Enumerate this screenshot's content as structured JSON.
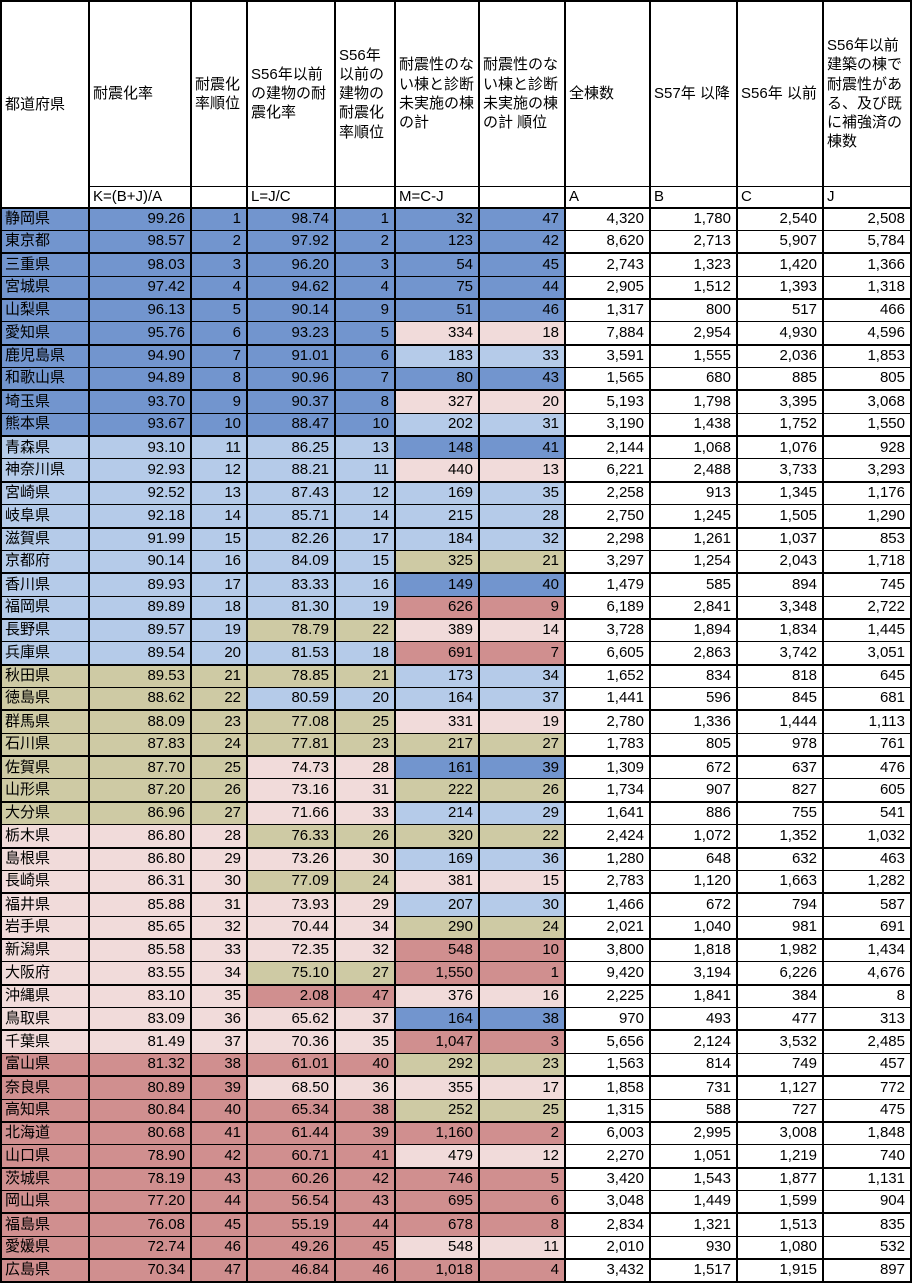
{
  "table": {
    "columns": [
      {
        "label": "都道府県",
        "formula": ""
      },
      {
        "label": "耐震化率",
        "formula": "K=(B+J)/A"
      },
      {
        "label": "耐震化率順位",
        "formula": ""
      },
      {
        "label": "S56年以前の建物の耐震化率",
        "formula": "L=J/C"
      },
      {
        "label": "S56年以前の建物の耐震化率順位",
        "formula": ""
      },
      {
        "label": "耐震性のない棟と診断 未実施の棟 の計",
        "formula": "M=C-J"
      },
      {
        "label": "耐震性のない棟と診断 未実施の棟 の計 順位",
        "formula": ""
      },
      {
        "label": "全棟数",
        "formula": "A"
      },
      {
        "label": "S57年 以降",
        "formula": "B"
      },
      {
        "label": "S56年 以前",
        "formula": "C"
      },
      {
        "label": "S56年以前 建築の棟で 耐震性がある、及び既 に補強済の棟数",
        "formula": "J"
      }
    ],
    "rows": [
      [
        "静岡県",
        "99.26",
        "1",
        "98.74",
        "1",
        "32",
        "47",
        "4,320",
        "1,780",
        "2,540",
        "2,508"
      ],
      [
        "東京都",
        "98.57",
        "2",
        "97.92",
        "2",
        "123",
        "42",
        "8,620",
        "2,713",
        "5,907",
        "5,784"
      ],
      [
        "三重県",
        "98.03",
        "3",
        "96.20",
        "3",
        "54",
        "45",
        "2,743",
        "1,323",
        "1,420",
        "1,366"
      ],
      [
        "宮城県",
        "97.42",
        "4",
        "94.62",
        "4",
        "75",
        "44",
        "2,905",
        "1,512",
        "1,393",
        "1,318"
      ],
      [
        "山梨県",
        "96.13",
        "5",
        "90.14",
        "9",
        "51",
        "46",
        "1,317",
        "800",
        "517",
        "466"
      ],
      [
        "愛知県",
        "95.76",
        "6",
        "93.23",
        "5",
        "334",
        "18",
        "7,884",
        "2,954",
        "4,930",
        "4,596"
      ],
      [
        "鹿児島県",
        "94.90",
        "7",
        "91.01",
        "6",
        "183",
        "33",
        "3,591",
        "1,555",
        "2,036",
        "1,853"
      ],
      [
        "和歌山県",
        "94.89",
        "8",
        "90.96",
        "7",
        "80",
        "43",
        "1,565",
        "680",
        "885",
        "805"
      ],
      [
        "埼玉県",
        "93.70",
        "9",
        "90.37",
        "8",
        "327",
        "20",
        "5,193",
        "1,798",
        "3,395",
        "3,068"
      ],
      [
        "熊本県",
        "93.67",
        "10",
        "88.47",
        "10",
        "202",
        "31",
        "3,190",
        "1,438",
        "1,752",
        "1,550"
      ],
      [
        "青森県",
        "93.10",
        "11",
        "86.25",
        "13",
        "148",
        "41",
        "2,144",
        "1,068",
        "1,076",
        "928"
      ],
      [
        "神奈川県",
        "92.93",
        "12",
        "88.21",
        "11",
        "440",
        "13",
        "6,221",
        "2,488",
        "3,733",
        "3,293"
      ],
      [
        "宮崎県",
        "92.52",
        "13",
        "87.43",
        "12",
        "169",
        "35",
        "2,258",
        "913",
        "1,345",
        "1,176"
      ],
      [
        "岐阜県",
        "92.18",
        "14",
        "85.71",
        "14",
        "215",
        "28",
        "2,750",
        "1,245",
        "1,505",
        "1,290"
      ],
      [
        "滋賀県",
        "91.99",
        "15",
        "82.26",
        "17",
        "184",
        "32",
        "2,298",
        "1,261",
        "1,037",
        "853"
      ],
      [
        "京都府",
        "90.14",
        "16",
        "84.09",
        "15",
        "325",
        "21",
        "3,297",
        "1,254",
        "2,043",
        "1,718"
      ],
      [
        "香川県",
        "89.93",
        "17",
        "83.33",
        "16",
        "149",
        "40",
        "1,479",
        "585",
        "894",
        "745"
      ],
      [
        "福岡県",
        "89.89",
        "18",
        "81.30",
        "19",
        "626",
        "9",
        "6,189",
        "2,841",
        "3,348",
        "2,722"
      ],
      [
        "長野県",
        "89.57",
        "19",
        "78.79",
        "22",
        "389",
        "14",
        "3,728",
        "1,894",
        "1,834",
        "1,445"
      ],
      [
        "兵庫県",
        "89.54",
        "20",
        "81.53",
        "18",
        "691",
        "7",
        "6,605",
        "2,863",
        "3,742",
        "3,051"
      ],
      [
        "秋田県",
        "89.53",
        "21",
        "78.85",
        "21",
        "173",
        "34",
        "1,652",
        "834",
        "818",
        "645"
      ],
      [
        "徳島県",
        "88.62",
        "22",
        "80.59",
        "20",
        "164",
        "37",
        "1,441",
        "596",
        "845",
        "681"
      ],
      [
        "群馬県",
        "88.09",
        "23",
        "77.08",
        "25",
        "331",
        "19",
        "2,780",
        "1,336",
        "1,444",
        "1,113"
      ],
      [
        "石川県",
        "87.83",
        "24",
        "77.81",
        "23",
        "217",
        "27",
        "1,783",
        "805",
        "978",
        "761"
      ],
      [
        "佐賀県",
        "87.70",
        "25",
        "74.73",
        "28",
        "161",
        "39",
        "1,309",
        "672",
        "637",
        "476"
      ],
      [
        "山形県",
        "87.20",
        "26",
        "73.16",
        "31",
        "222",
        "26",
        "1,734",
        "907",
        "827",
        "605"
      ],
      [
        "大分県",
        "86.96",
        "27",
        "71.66",
        "33",
        "214",
        "29",
        "1,641",
        "886",
        "755",
        "541"
      ],
      [
        "栃木県",
        "86.80",
        "28",
        "76.33",
        "26",
        "320",
        "22",
        "2,424",
        "1,072",
        "1,352",
        "1,032"
      ],
      [
        "島根県",
        "86.80",
        "29",
        "73.26",
        "30",
        "169",
        "36",
        "1,280",
        "648",
        "632",
        "463"
      ],
      [
        "長崎県",
        "86.31",
        "30",
        "77.09",
        "24",
        "381",
        "15",
        "2,783",
        "1,120",
        "1,663",
        "1,282"
      ],
      [
        "福井県",
        "85.88",
        "31",
        "73.93",
        "29",
        "207",
        "30",
        "1,466",
        "672",
        "794",
        "587"
      ],
      [
        "岩手県",
        "85.65",
        "32",
        "70.44",
        "34",
        "290",
        "24",
        "2,021",
        "1,040",
        "981",
        "691"
      ],
      [
        "新潟県",
        "85.58",
        "33",
        "72.35",
        "32",
        "548",
        "10",
        "3,800",
        "1,818",
        "1,982",
        "1,434"
      ],
      [
        "大阪府",
        "83.55",
        "34",
        "75.10",
        "27",
        "1,550",
        "1",
        "9,420",
        "3,194",
        "6,226",
        "4,676"
      ],
      [
        "沖縄県",
        "83.10",
        "35",
        "2.08",
        "47",
        "376",
        "16",
        "2,225",
        "1,841",
        "384",
        "8"
      ],
      [
        "鳥取県",
        "83.09",
        "36",
        "65.62",
        "37",
        "164",
        "38",
        "970",
        "493",
        "477",
        "313"
      ],
      [
        "千葉県",
        "81.49",
        "37",
        "70.36",
        "35",
        "1,047",
        "3",
        "5,656",
        "2,124",
        "3,532",
        "2,485"
      ],
      [
        "富山県",
        "81.32",
        "38",
        "61.01",
        "40",
        "292",
        "23",
        "1,563",
        "814",
        "749",
        "457"
      ],
      [
        "奈良県",
        "80.89",
        "39",
        "68.50",
        "36",
        "355",
        "17",
        "1,858",
        "731",
        "1,127",
        "772"
      ],
      [
        "高知県",
        "80.84",
        "40",
        "65.34",
        "38",
        "252",
        "25",
        "1,315",
        "588",
        "727",
        "475"
      ],
      [
        "北海道",
        "80.68",
        "41",
        "61.44",
        "39",
        "1,160",
        "2",
        "6,003",
        "2,995",
        "3,008",
        "1,848"
      ],
      [
        "山口県",
        "78.90",
        "42",
        "60.71",
        "41",
        "479",
        "12",
        "2,270",
        "1,051",
        "1,219",
        "740"
      ],
      [
        "茨城県",
        "78.19",
        "43",
        "60.26",
        "42",
        "746",
        "5",
        "3,420",
        "1,543",
        "1,877",
        "1,131"
      ],
      [
        "岡山県",
        "77.20",
        "44",
        "56.54",
        "43",
        "695",
        "6",
        "3,048",
        "1,449",
        "1,599",
        "904"
      ],
      [
        "福島県",
        "76.08",
        "45",
        "55.19",
        "44",
        "678",
        "8",
        "2,834",
        "1,321",
        "1,513",
        "835"
      ],
      [
        "愛媛県",
        "72.74",
        "46",
        "49.26",
        "45",
        "548",
        "11",
        "2,010",
        "930",
        "1,080",
        "532"
      ],
      [
        "広島県",
        "70.34",
        "47",
        "46.84",
        "46",
        "1,018",
        "4",
        "3,432",
        "1,517",
        "1,915",
        "897"
      ]
    ]
  },
  "palette": {
    "background": "#ffffff",
    "grid_line": "#000000",
    "text": "#000000",
    "color_bands": [
      {
        "max_rank": 10,
        "color": "#7295ce"
      },
      {
        "max_rank": 20,
        "color": "#b5cbe9"
      },
      {
        "max_rank": 27,
        "color": "#cecaa4"
      },
      {
        "max_rank": 37,
        "color": "#f1dbda"
      },
      {
        "max_rank": 47,
        "color": "#d08f8f"
      }
    ]
  }
}
